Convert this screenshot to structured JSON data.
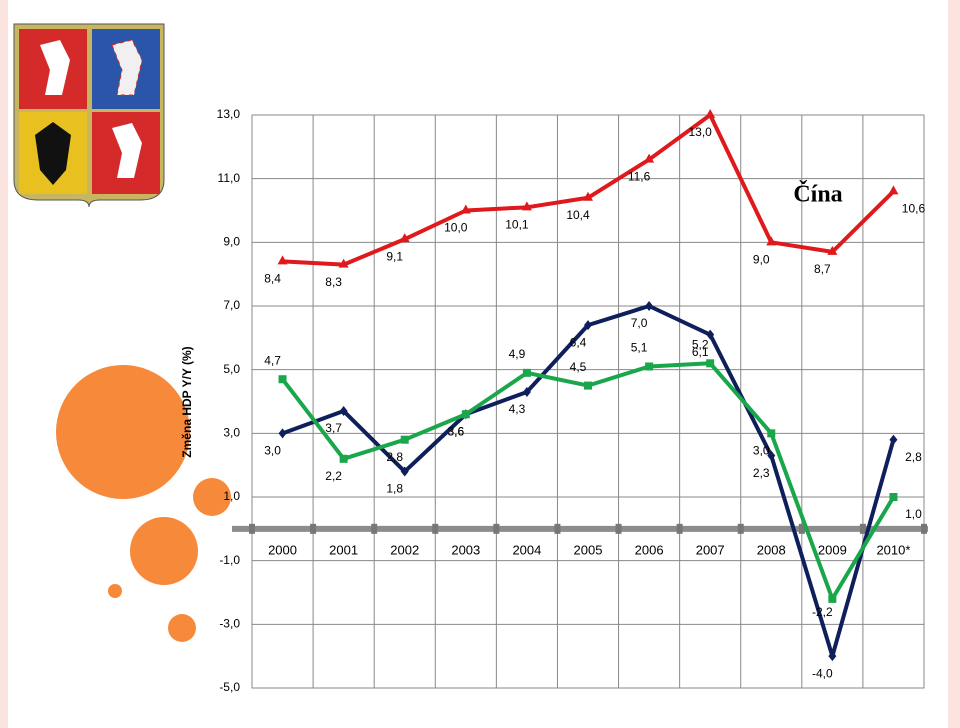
{
  "chart_data": {
    "type": "line",
    "y_label": "Změna HDP Y/Y (%)",
    "categories": [
      "2000",
      "2001",
      "2002",
      "2003",
      "2004",
      "2005",
      "2006",
      "2007",
      "2008",
      "2009",
      "2010*"
    ],
    "ylim": [
      -5,
      13
    ],
    "yticks": [
      {
        "value": -5,
        "label": "-5,0"
      },
      {
        "value": -3,
        "label": "-3,0"
      },
      {
        "value": -1,
        "label": "-1,0"
      },
      {
        "value": 1,
        "label": "1,0"
      },
      {
        "value": 3,
        "label": "3,0"
      },
      {
        "value": 5,
        "label": "5,0"
      },
      {
        "value": 7,
        "label": "7,0"
      },
      {
        "value": 9,
        "label": "9,0"
      },
      {
        "value": 11,
        "label": "11,0"
      },
      {
        "value": 13,
        "label": "13,0"
      }
    ],
    "grid": true,
    "series": [
      {
        "color": "#0f1f5c",
        "marker": "diamond",
        "values": [
          3.0,
          3.7,
          1.8,
          3.6,
          4.3,
          6.4,
          7.0,
          6.1,
          2.3,
          -4.0,
          2.8
        ],
        "value_labels": [
          "3,0",
          "3,7",
          "1,8",
          "3,6",
          "4,3",
          "6,4",
          "7,0",
          "6,1",
          "2,3",
          "-4,0",
          "2,8"
        ]
      },
      {
        "color": "#1aa64a",
        "marker": "square",
        "values": [
          4.7,
          2.2,
          2.8,
          3.6,
          4.9,
          4.5,
          5.1,
          5.2,
          3.0,
          -2.2,
          1.0
        ],
        "value_labels": [
          "4,7",
          "2,2",
          "2,8",
          "3,6",
          "4,9",
          "4,5",
          "5,1",
          "5,2",
          "3,0",
          "-2,2",
          "1,0"
        ]
      },
      {
        "name": "Čína",
        "color": "#e0191c",
        "marker": "triangle",
        "values": [
          8.4,
          8.3,
          9.1,
          10.0,
          10.1,
          10.4,
          11.6,
          13.0,
          9.0,
          8.7,
          10.6
        ],
        "value_labels": [
          "8,4",
          "8,3",
          "9,1",
          "10,0",
          "10,1",
          "10,4",
          "11,6",
          "13,0",
          "9,0",
          "8,7",
          "10,6"
        ]
      }
    ]
  }
}
